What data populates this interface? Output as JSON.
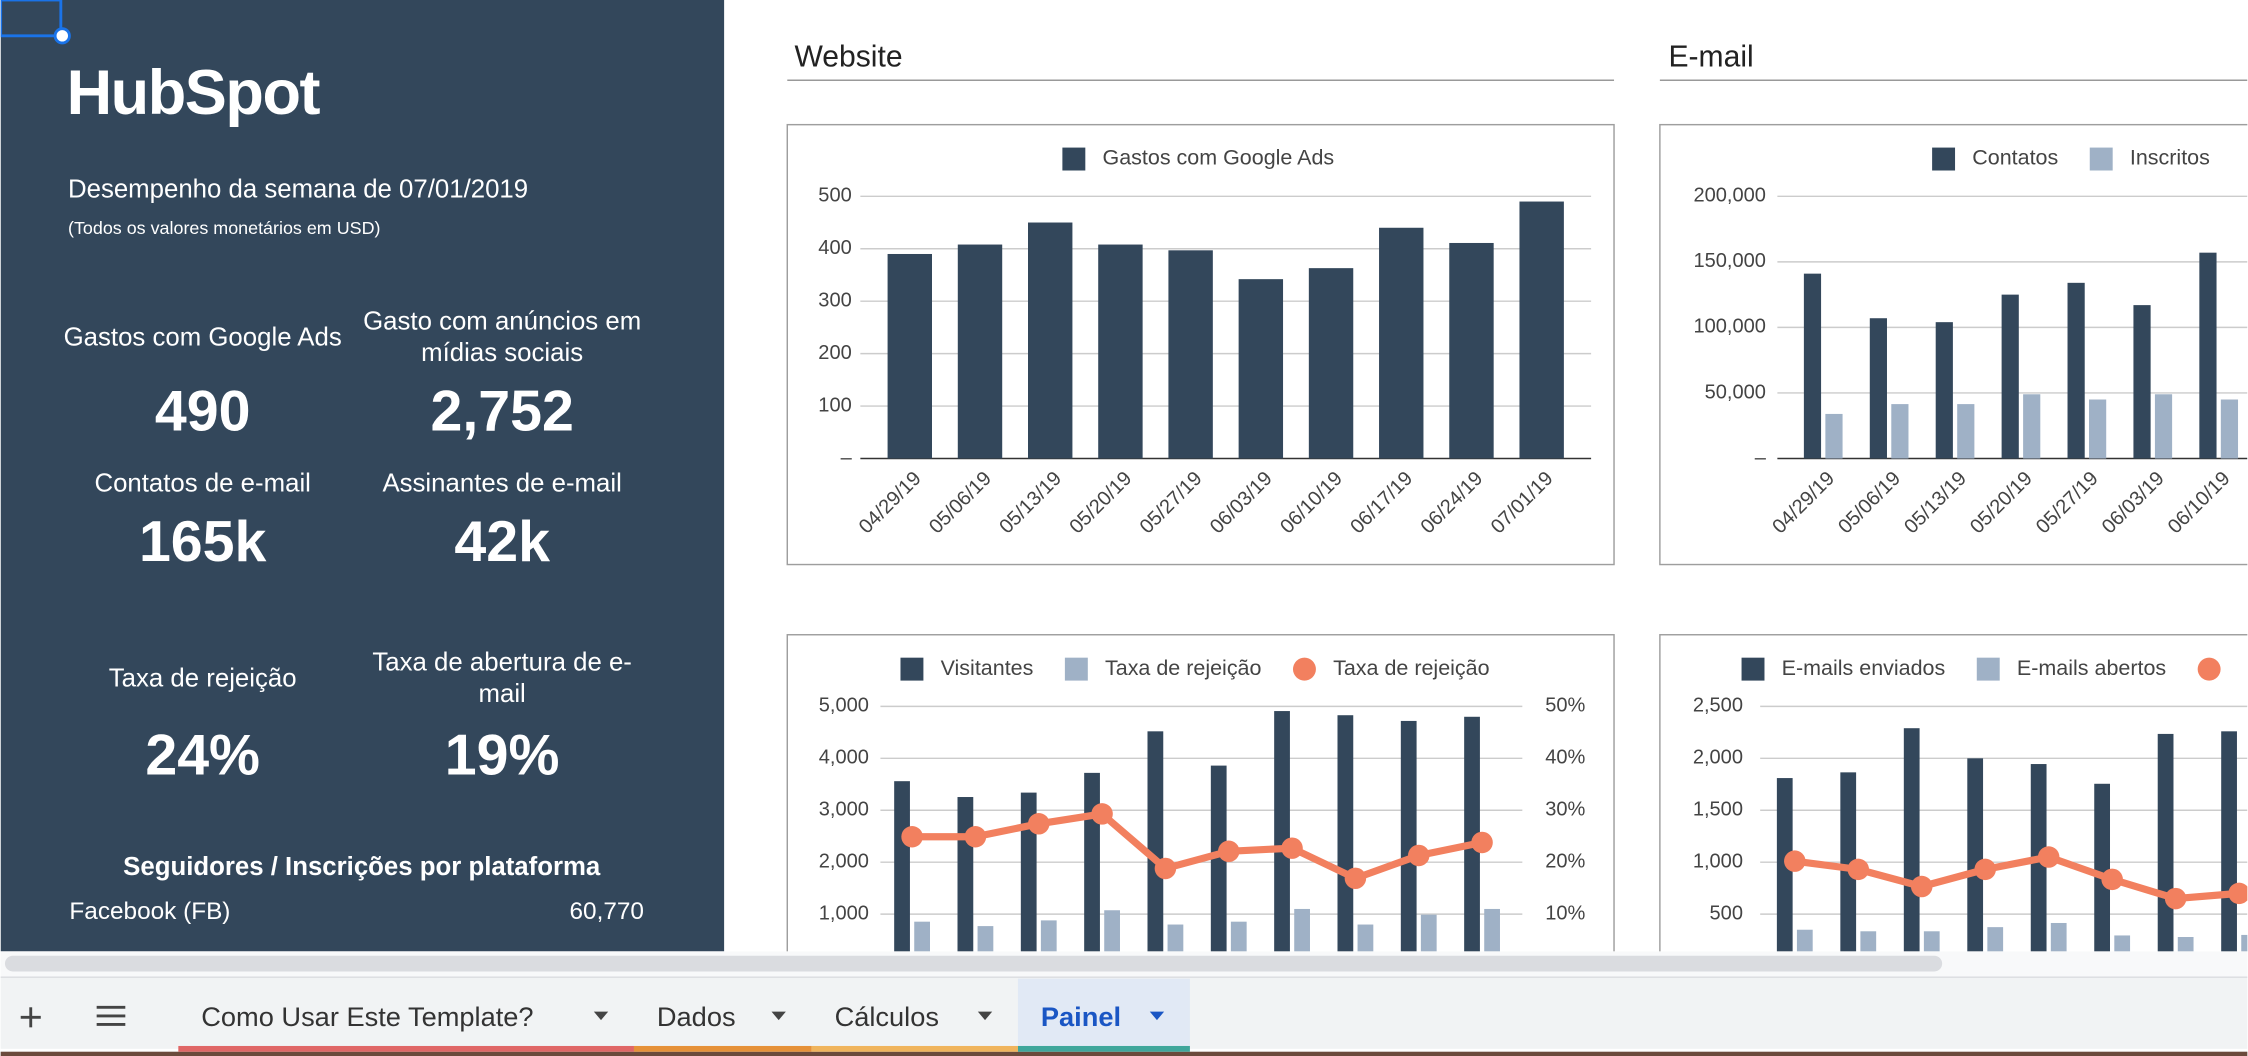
{
  "sidebar": {
    "logo": "HubSpot",
    "title": "Desempenho da semana de 07/01/2019",
    "note": "(Todos os valores monetários em USD)",
    "kpis": [
      {
        "label": "Gastos com Google Ads",
        "value": "490"
      },
      {
        "label": "Gasto com anúncios em mídias sociais",
        "value": "2,752"
      },
      {
        "label": "Contatos de e-mail",
        "value": "165k"
      },
      {
        "label": "Assinantes de e-mail",
        "value": "42k"
      },
      {
        "label": "Taxa de rejeição",
        "value": "24%"
      },
      {
        "label": "Taxa de abertura de e-mail",
        "value": "19%"
      }
    ],
    "platforms_title": "Seguidores / Inscrições por plataforma",
    "platforms": [
      {
        "name": "Facebook (FB)",
        "value": "60,770"
      }
    ]
  },
  "sections": [
    "Website",
    "E-mail"
  ],
  "chart_data": [
    {
      "type": "bar",
      "categories": [
        "04/29/19",
        "05/06/19",
        "05/13/19",
        "05/20/19",
        "05/27/19",
        "06/03/19",
        "06/10/19",
        "06/17/19",
        "06/24/19",
        "07/01/19"
      ],
      "series": [
        {
          "name": "Gastos com Google Ads",
          "color": "#33475b",
          "values": [
            390,
            408,
            450,
            408,
            397,
            342,
            363,
            440,
            411,
            490
          ]
        }
      ],
      "ylim": [
        0,
        500
      ],
      "yticks": [
        {
          "value": 0,
          "label": "–"
        },
        100,
        200,
        300,
        400,
        500
      ],
      "grid": true
    },
    {
      "type": "bar",
      "categories": [
        "04/29/19",
        "05/06/19",
        "05/13/19",
        "05/20/19",
        "05/27/19",
        "06/03/19",
        "06/10/19"
      ],
      "series": [
        {
          "name": "Contatos",
          "color": "#33475b",
          "values": [
            141000,
            107000,
            104000,
            125000,
            134000,
            117000,
            157000
          ]
        },
        {
          "name": "Inscritos",
          "color": "#9fb1c6",
          "values": [
            34000,
            41500,
            41500,
            49000,
            45000,
            49000,
            45000
          ]
        }
      ],
      "ylim": [
        0,
        200000
      ],
      "yticks": [
        {
          "value": 0,
          "label": "–"
        },
        {
          "value": 50000,
          "label": "50,000"
        },
        {
          "value": 100000,
          "label": "100,000"
        },
        {
          "value": 150000,
          "label": "150,000"
        },
        {
          "value": 200000,
          "label": "200,000"
        }
      ],
      "grid": true
    },
    {
      "type": "bar",
      "series": [
        {
          "name": "Visitantes",
          "color": "#33475b",
          "values": [
            3560,
            3255,
            3340,
            3720,
            4520,
            3860,
            4910,
            4830,
            4720,
            4800
          ]
        },
        {
          "name": "Taxa de rejeição",
          "color": "#9fb1c6",
          "values": [
            855,
            770,
            880,
            1075,
            800,
            855,
            1100,
            800,
            990,
            1100
          ]
        },
        {
          "name": "Taxa de rejeição",
          "color": "#f2805f",
          "type": "line",
          "axis": "y2",
          "values": [
            24.9,
            24.9,
            27.4,
            29.3,
            18.8,
            22.1,
            22.7,
            16.9,
            21.3,
            23.8
          ]
        }
      ],
      "ylim": [
        0,
        5000
      ],
      "yticks": [
        {
          "value": 1000,
          "label": "1,000"
        },
        {
          "value": 2000,
          "label": "2,000"
        },
        {
          "value": 3000,
          "label": "3,000"
        },
        {
          "value": 4000,
          "label": "4,000"
        },
        {
          "value": 5000,
          "label": "5,000"
        }
      ],
      "y2lim": [
        0,
        50
      ],
      "y2ticks": [
        {
          "value": 10,
          "label": "10%"
        },
        {
          "value": 20,
          "label": "20%"
        },
        {
          "value": 30,
          "label": "30%"
        },
        {
          "value": 40,
          "label": "40%"
        },
        {
          "value": 50,
          "label": "50%"
        }
      ],
      "grid": true
    },
    {
      "type": "bar",
      "series": [
        {
          "name": "E-mails enviados",
          "color": "#33475b",
          "values": [
            1810,
            1865,
            2290,
            2000,
            1945,
            1755,
            2235,
            2260
          ]
        },
        {
          "name": "E-mails abertos",
          "color": "#9fb1c6",
          "values": [
            350,
            335,
            335,
            375,
            415,
            295,
            280,
            300
          ]
        },
        {
          "color": "#f2805f",
          "type": "line",
          "values": [
            1010,
            931,
            766,
            931,
            1050,
            835,
            650,
            700
          ]
        }
      ],
      "ylim": [
        0,
        2500
      ],
      "yticks": [
        500,
        {
          "value": 1000,
          "label": "1,000"
        },
        {
          "value": 1500,
          "label": "1,500"
        },
        {
          "value": 2000,
          "label": "2,000"
        },
        {
          "value": 2500,
          "label": "2,500"
        }
      ],
      "grid": true
    }
  ],
  "tabs": [
    "Como Usar Este Template?",
    "Dados",
    "Cálculos",
    "Painel"
  ],
  "active_tab": 3
}
